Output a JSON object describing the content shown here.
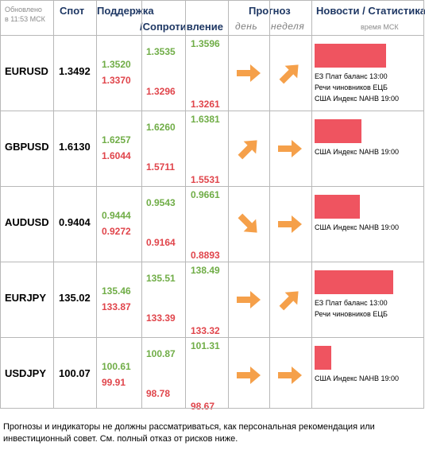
{
  "header": {
    "updated_line1": "Обновлено",
    "updated_line2": "в 11:53 МСК",
    "spot": "Спот",
    "support": "Поддержка",
    "resistance": "/Сопротивление",
    "forecast": "Прогноз",
    "day": "день",
    "week": "неделя",
    "news": "Новости / Статистика",
    "time_msk": "время МСК"
  },
  "rows": [
    {
      "pair": "EURUSD",
      "spot": "1.3492",
      "s1": "1.3520",
      "r1": "1.3370",
      "s2": "1.3535",
      "r2": "1.3296",
      "s3": "1.3596",
      "r3": "1.3261",
      "day": "right",
      "week": "up",
      "bar": 0.82,
      "news": [
        "ЕЗ Плат баланс 13:00",
        "Речи чиновников ЕЦБ",
        "США Индекс NAHB 19:00"
      ]
    },
    {
      "pair": "GBPUSD",
      "spot": "1.6130",
      "s1": "1.6257",
      "r1": "1.6044",
      "s2": "1.6260",
      "r2": "1.5711",
      "s3": "1.6381",
      "r3": "1.5531",
      "day": "up",
      "week": "right",
      "bar": 0.54,
      "news": [
        "США Индекс NAHB 19:00"
      ]
    },
    {
      "pair": "AUDUSD",
      "spot": "0.9404",
      "s1": "0.9444",
      "r1": "0.9272",
      "s2": "0.9543",
      "r2": "0.9164",
      "s3": "0.9661",
      "r3": "0.8893",
      "day": "down",
      "week": "right",
      "bar": 0.52,
      "news": [
        "США Индекс NAHB 19:00"
      ]
    },
    {
      "pair": "EURJPY",
      "spot": "135.02",
      "s1": "135.46",
      "r1": "133.87",
      "s2": "135.51",
      "r2": "133.39",
      "s3": "138.49",
      "r3": "133.32",
      "day": "right",
      "week": "up",
      "bar": 0.9,
      "news": [
        "ЕЗ Плат баланс 13:00",
        "Речи чиновников ЕЦБ"
      ]
    },
    {
      "pair": "USDJPY",
      "spot": "100.07",
      "s1": "100.61",
      "r1": "99.91",
      "s2": "100.87",
      "r2": "98.78",
      "s3": "101.31",
      "r3": "98.67",
      "day": "right",
      "week": "right",
      "bar": 0.19,
      "news": [
        "США Индекс NAHB 19:00"
      ]
    }
  ],
  "disclaimer": "Прогнозы и индикаторы не должны рассматриваться, как персональная рекомендация или инвестиционный совет. См. полный отказ от рисков ниже.",
  "colors": {
    "support": "#70ad47",
    "resistance": "#e0454b",
    "arrow": "#f5a04a",
    "bar": "#ef5460",
    "header": "#1f3864"
  }
}
